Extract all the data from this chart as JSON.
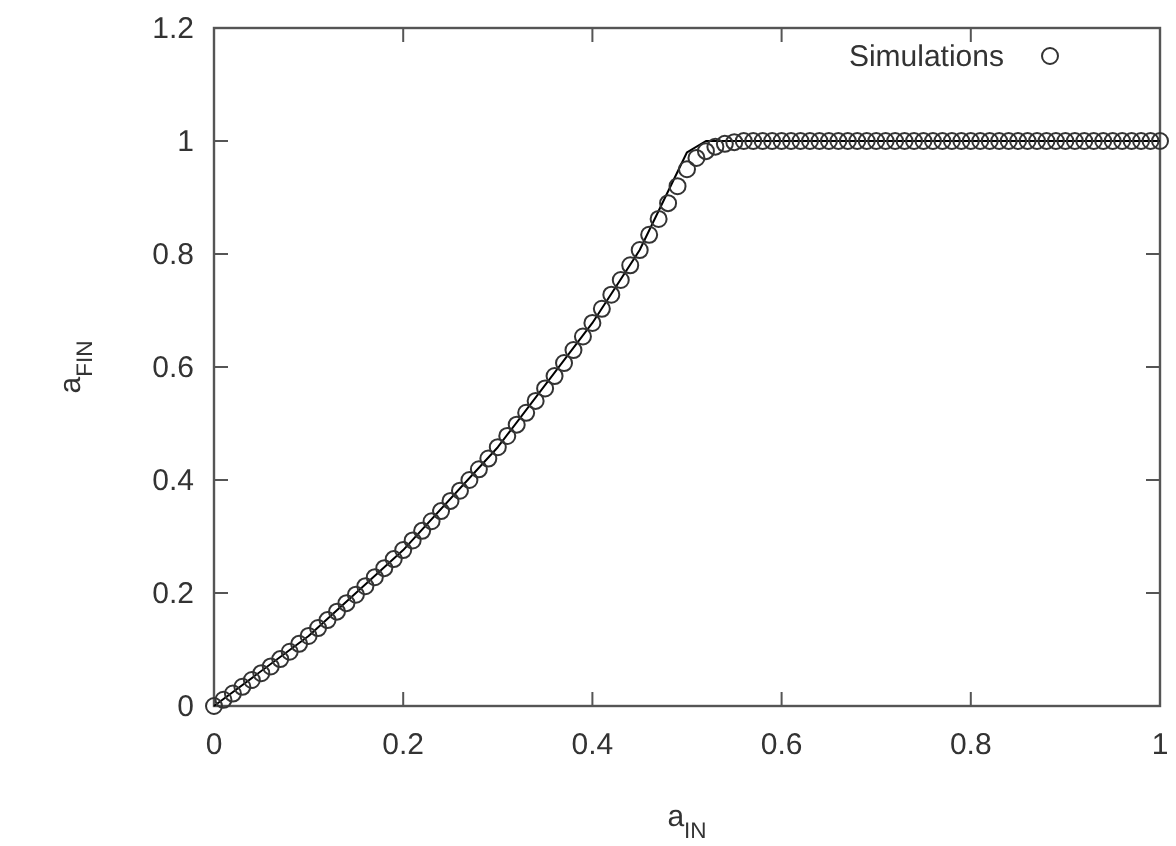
{
  "chart_data": {
    "type": "scatter",
    "xlabel": "a$_{IN}$",
    "ylabel": "a$_{FIN}$",
    "xlim": [
      0,
      1
    ],
    "ylim": [
      0,
      1.2
    ],
    "xticks": [
      0,
      0.2,
      0.4,
      0.6,
      0.8,
      1
    ],
    "yticks": [
      0,
      0.2,
      0.4,
      0.6,
      0.8,
      1,
      1.2
    ],
    "grid": false,
    "legend": "top right",
    "marker": "circle",
    "series": [
      {
        "type": "line",
        "color": "#000000",
        "line_style": "solid",
        "marker": "none",
        "x": [
          0,
          0.1,
          0.2,
          0.3,
          0.4,
          0.45,
          0.5,
          0.52,
          1
        ],
        "values": [
          0,
          0.124,
          0.276,
          0.458,
          0.678,
          0.807,
          0.98,
          1,
          1
        ]
      },
      {
        "name": "Simulations",
        "color": "#333333",
        "x": [
          0,
          0.01,
          0.02,
          0.03,
          0.04,
          0.05,
          0.06,
          0.07,
          0.08,
          0.09,
          0.1,
          0.11,
          0.12,
          0.13,
          0.14,
          0.15,
          0.16,
          0.17,
          0.18,
          0.19,
          0.2,
          0.21,
          0.22,
          0.23,
          0.24,
          0.25,
          0.26,
          0.27,
          0.28,
          0.29,
          0.3,
          0.31,
          0.32,
          0.33,
          0.34,
          0.35,
          0.36,
          0.37,
          0.38,
          0.39,
          0.4,
          0.41,
          0.42,
          0.43,
          0.44,
          0.45,
          0.46,
          0.47,
          0.48,
          0.49,
          0.5,
          0.51,
          0.52,
          0.53,
          0.54,
          0.55,
          0.56,
          0.57,
          0.58,
          0.59,
          0.6,
          0.61,
          0.62,
          0.63,
          0.64,
          0.65,
          0.66,
          0.67,
          0.68,
          0.69,
          0.7,
          0.71,
          0.72,
          0.73,
          0.74,
          0.75,
          0.76,
          0.77,
          0.78,
          0.79,
          0.8,
          0.81,
          0.82,
          0.83,
          0.84,
          0.85,
          0.86,
          0.87,
          0.88,
          0.89,
          0.9,
          0.91,
          0.92,
          0.93,
          0.94,
          0.95,
          0.96,
          0.97,
          0.98,
          0.99,
          1
        ],
        "values": [
          0,
          0.011,
          0.022,
          0.034,
          0.046,
          0.058,
          0.07,
          0.083,
          0.096,
          0.11,
          0.124,
          0.138,
          0.152,
          0.167,
          0.182,
          0.197,
          0.212,
          0.228,
          0.244,
          0.26,
          0.276,
          0.293,
          0.31,
          0.327,
          0.345,
          0.363,
          0.381,
          0.4,
          0.419,
          0.438,
          0.458,
          0.478,
          0.498,
          0.519,
          0.54,
          0.562,
          0.584,
          0.607,
          0.63,
          0.654,
          0.678,
          0.703,
          0.728,
          0.754,
          0.78,
          0.807,
          0.834,
          0.862,
          0.89,
          0.92,
          0.95,
          0.97,
          0.982,
          0.99,
          0.995,
          0.998,
          1,
          1,
          1,
          1,
          1,
          1,
          1,
          1,
          1,
          1,
          1,
          1,
          1,
          1,
          1,
          1,
          1,
          1,
          1,
          1,
          1,
          1,
          1,
          1,
          1,
          1,
          1,
          1,
          1,
          1,
          1,
          1,
          1,
          1,
          1,
          1,
          1,
          1,
          1,
          1,
          1,
          1,
          1,
          1,
          1
        ]
      }
    ]
  }
}
